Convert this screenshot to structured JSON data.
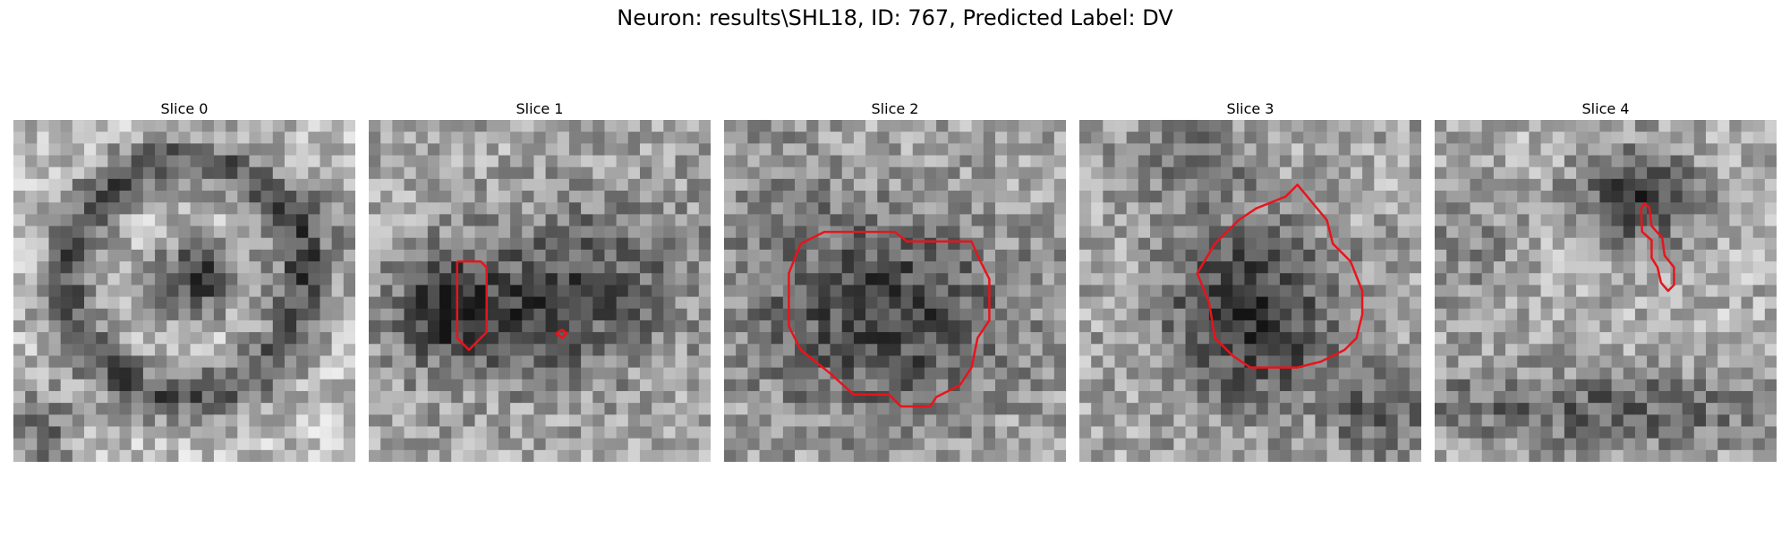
{
  "title": "Neuron: results\\SHL18, ID: 767, Predicted Label: DV",
  "slices": [
    {
      "label": "Slice 0",
      "has_contour": false
    },
    {
      "label": "Slice 1",
      "has_contour": true
    },
    {
      "label": "Slice 2",
      "has_contour": true
    },
    {
      "label": "Slice 3",
      "has_contour": true
    },
    {
      "label": "Slice 4",
      "has_contour": true
    }
  ],
  "colors": {
    "contour": "#e8141c",
    "background": "#ffffff"
  }
}
